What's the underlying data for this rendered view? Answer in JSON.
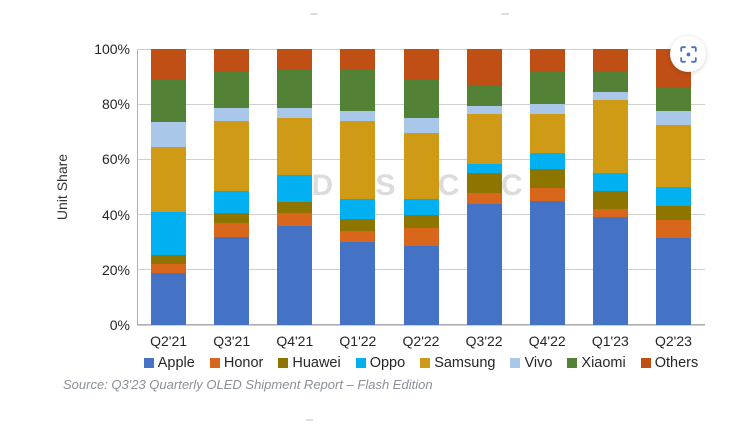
{
  "chart_data": {
    "type": "bar",
    "stacked": true,
    "title": "",
    "ylabel": "Unit Share",
    "ylim": [
      0,
      100
    ],
    "grid": "horizontal",
    "legend_position": "bottom",
    "yticks": [
      0,
      20,
      40,
      60,
      80,
      100
    ],
    "ytick_labels": [
      "0%",
      "20%",
      "40%",
      "60%",
      "80%",
      "100%"
    ],
    "categories": [
      "Q2'21",
      "Q3'21",
      "Q4'21",
      "Q1'22",
      "Q2'22",
      "Q3'22",
      "Q4'22",
      "Q1'23",
      "Q2'23"
    ],
    "series": [
      {
        "name": "Apple",
        "color": "#4472c4",
        "values": [
          19,
          32,
          36,
          30,
          28.5,
          44,
          45,
          39,
          31.5
        ]
      },
      {
        "name": "Honor",
        "color": "#d9671b",
        "values": [
          3,
          5,
          4.5,
          4,
          6.5,
          4,
          4.5,
          3,
          6.5
        ]
      },
      {
        "name": "Huawei",
        "color": "#8e7500",
        "values": [
          3.5,
          3.5,
          4,
          4.5,
          5,
          7,
          7,
          6.5,
          5
        ]
      },
      {
        "name": "Oppo",
        "color": "#00b0f0",
        "values": [
          15.5,
          8,
          10,
          7,
          5.5,
          3.5,
          6,
          6.5,
          7
        ]
      },
      {
        "name": "Samsung",
        "color": "#cf9b17",
        "values": [
          23.5,
          25.5,
          20.5,
          28.5,
          24,
          18,
          14,
          26.5,
          22.5
        ]
      },
      {
        "name": "Vivo",
        "color": "#a9c7e9",
        "values": [
          9,
          4.5,
          3.5,
          3.5,
          5.5,
          3,
          3.5,
          3,
          5
        ]
      },
      {
        "name": "Xiaomi",
        "color": "#538135",
        "values": [
          15.5,
          13.5,
          14,
          15,
          14,
          7,
          11.5,
          7,
          8.5
        ]
      },
      {
        "name": "Others",
        "color": "#bf4f15",
        "values": [
          11,
          8,
          7.5,
          7.5,
          11,
          13.5,
          8.5,
          8.5,
          14
        ]
      }
    ],
    "watermark": [
      "D",
      "S",
      "C",
      "C"
    ],
    "source_note": "Source: Q3'23 Quarterly OLED Shipment Report – Flash Edition"
  },
  "colors": {
    "gridline": "#cfcfcf",
    "axis": "#aeaeae",
    "watermark": "#dcdcdc",
    "capture_icon": "#4472c4"
  },
  "icons": {
    "capture_button": "viewfinder-capture-icon"
  }
}
